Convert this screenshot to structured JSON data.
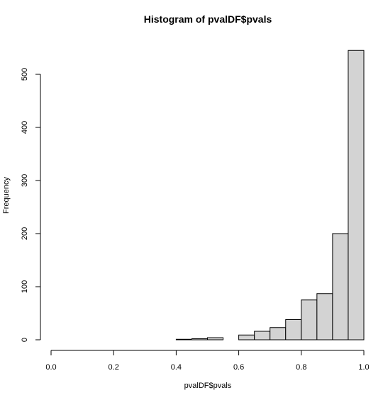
{
  "chart_data": {
    "type": "bar",
    "title": "Histogram of pvalDF$pvals",
    "xlabel": "pvalDF$pvals",
    "ylabel": "Frequency",
    "bin_width": 0.05,
    "bins": [
      {
        "start": 0.4,
        "end": 0.45,
        "count": 1
      },
      {
        "start": 0.45,
        "end": 0.5,
        "count": 2
      },
      {
        "start": 0.5,
        "end": 0.55,
        "count": 4
      },
      {
        "start": 0.55,
        "end": 0.6,
        "count": 0
      },
      {
        "start": 0.6,
        "end": 0.65,
        "count": 9
      },
      {
        "start": 0.65,
        "end": 0.7,
        "count": 16
      },
      {
        "start": 0.7,
        "end": 0.75,
        "count": 23
      },
      {
        "start": 0.75,
        "end": 0.8,
        "count": 38
      },
      {
        "start": 0.8,
        "end": 0.85,
        "count": 75
      },
      {
        "start": 0.85,
        "end": 0.9,
        "count": 87
      },
      {
        "start": 0.9,
        "end": 0.95,
        "count": 200
      },
      {
        "start": 0.95,
        "end": 1.0,
        "count": 545
      }
    ],
    "xlim": [
      0.0,
      1.0
    ],
    "ylim": [
      0,
      545
    ],
    "xticks": [
      "0.0",
      "0.2",
      "0.4",
      "0.6",
      "0.8",
      "1.0"
    ],
    "yticks": [
      "0",
      "100",
      "200",
      "300",
      "400",
      "500"
    ],
    "bar_color": "#d3d3d3",
    "grid": false
  }
}
